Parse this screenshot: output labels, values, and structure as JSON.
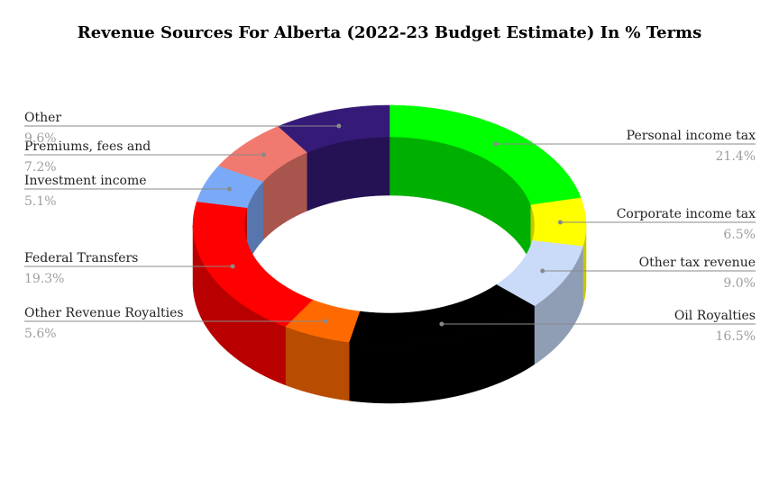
{
  "chart_data": {
    "type": "pie",
    "variant": "3d-donut",
    "title": "Revenue Sources For Alberta (2022-23 Budget Estimate) In % Terms",
    "slices": [
      {
        "name": "Personal income tax",
        "value": 21.4,
        "label": "21.4%",
        "color": "#00ff00",
        "side_color": "#00b000",
        "side": "right"
      },
      {
        "name": "Corporate income tax",
        "value": 6.5,
        "label": "6.5%",
        "color": "#ffff00",
        "side_color": "#c8c800",
        "side": "right"
      },
      {
        "name": "Other tax revenue",
        "value": 9.0,
        "label": "9.0%",
        "color": "#c9dbf8",
        "side_color": "#8f9db5",
        "side": "right"
      },
      {
        "name": "Oil Royalties",
        "value": 16.5,
        "label": "16.5%",
        "color": "#000000",
        "side_color": "#000000",
        "side": "right"
      },
      {
        "name": "Other Revenue Royalties",
        "value": 5.6,
        "label": "5.6%",
        "color": "#ff6a00",
        "side_color": "#b84c00",
        "side": "left"
      },
      {
        "name": "Federal Transfers",
        "value": 19.3,
        "label": "19.3%",
        "color": "#ff0000",
        "side_color": "#b80000",
        "side": "left"
      },
      {
        "name": "Investment income",
        "value": 5.1,
        "label": "5.1%",
        "color": "#7aaaf7",
        "side_color": "#5676ad",
        "side": "left"
      },
      {
        "name": "Premiums, fees and",
        "value": 7.2,
        "label": "7.2%",
        "color": "#f07a6f",
        "side_color": "#a8554e",
        "side": "left"
      },
      {
        "name": "Other",
        "value": 9.6,
        "label": "9.6%",
        "color": "#361a78",
        "side_color": "#251255",
        "side": "left"
      }
    ],
    "legend": "none"
  }
}
